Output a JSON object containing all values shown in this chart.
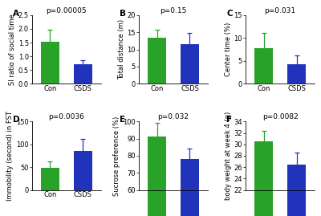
{
  "panels": [
    {
      "label": "A",
      "title": "p=0.00005",
      "ylabel": "SI ratio of social time",
      "ylim": [
        0,
        2.5
      ],
      "yticks": [
        0.0,
        0.5,
        1.0,
        1.5,
        2.0,
        2.5
      ],
      "con_mean": 1.53,
      "con_err": 0.45,
      "csds_mean": 0.72,
      "csds_err": 0.13
    },
    {
      "label": "B",
      "title": "p=0.15",
      "ylabel": "Total distance (m)",
      "ylim": [
        0,
        20
      ],
      "yticks": [
        0,
        5,
        10,
        15,
        20
      ],
      "con_mean": 13.5,
      "con_err": 2.2,
      "csds_mean": 11.5,
      "csds_err": 3.2
    },
    {
      "label": "C",
      "title": "p=0.031",
      "ylabel": "Center time (%)",
      "ylim": [
        0,
        15
      ],
      "yticks": [
        0,
        5,
        10,
        15
      ],
      "con_mean": 7.8,
      "con_err": 3.3,
      "csds_mean": 4.2,
      "csds_err": 2.0
    },
    {
      "label": "D",
      "title": "p=0.0036",
      "ylabel": "Immobility (second) in FST",
      "ylim": [
        0,
        150
      ],
      "yticks": [
        0,
        50,
        100,
        150
      ],
      "con_mean": 48,
      "con_err": 14,
      "csds_mean": 85,
      "csds_err": 26
    },
    {
      "label": "E",
      "title": "p=0.032",
      "ylabel": "Sucrose preference (%)",
      "ylim": [
        60,
        100
      ],
      "yticks": [
        60,
        70,
        80,
        90,
        100
      ],
      "con_mean": 91,
      "con_err": 8,
      "csds_mean": 78,
      "csds_err": 6
    },
    {
      "label": "F",
      "title": "p=0.0082",
      "ylabel": "body weight at week 4 (g)",
      "ylim": [
        22,
        34
      ],
      "yticks": [
        22,
        24,
        26,
        28,
        30,
        32,
        34
      ],
      "con_mean": 30.5,
      "con_err": 1.8,
      "csds_mean": 26.5,
      "csds_err": 2.0
    }
  ],
  "con_color": "#28a228",
  "csds_color": "#2233bb",
  "bar_width": 0.55,
  "xlabel_con": "Con",
  "xlabel_csds": "CSDS",
  "title_fontsize": 6.5,
  "label_fontsize": 6.0,
  "tick_fontsize": 6.0,
  "panel_label_fontsize": 7.5,
  "err_capsize": 2.0,
  "err_linewidth": 0.9,
  "background_color": "#ffffff"
}
